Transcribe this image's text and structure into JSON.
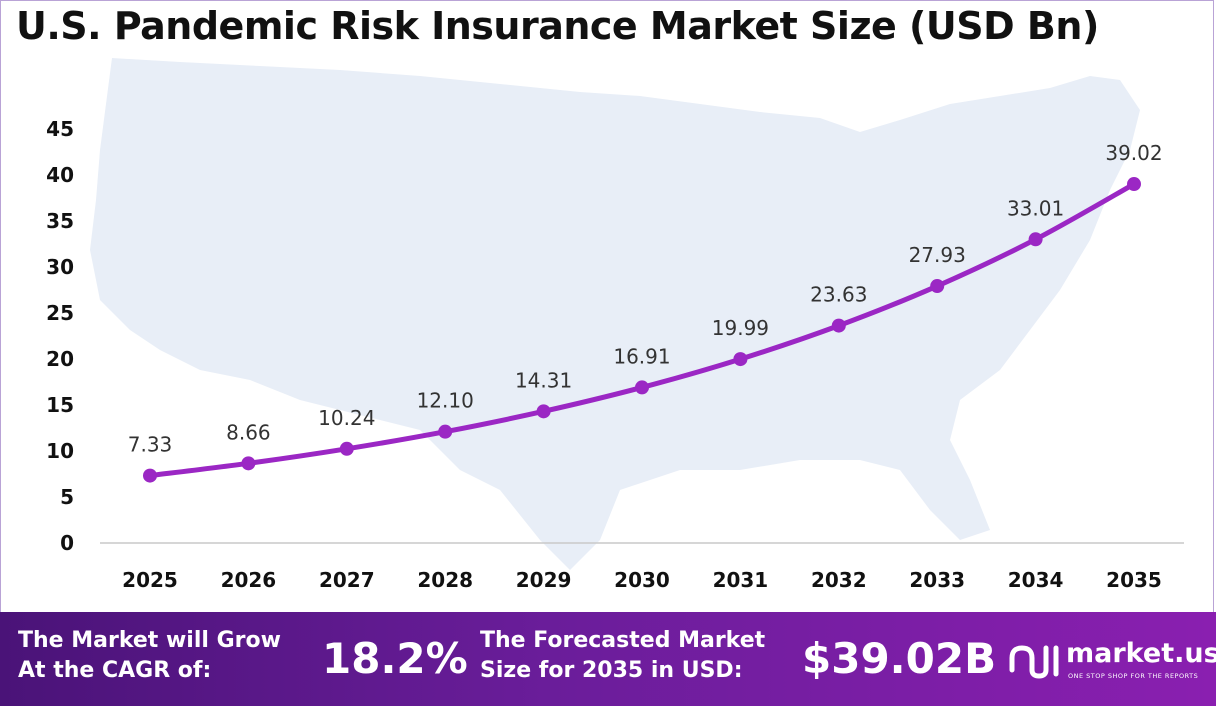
{
  "title": "U.S. Pandemic Risk Insurance Market Size (USD Bn)",
  "chart_data": {
    "type": "line",
    "categories": [
      "2025",
      "2026",
      "2027",
      "2028",
      "2029",
      "2030",
      "2031",
      "2032",
      "2033",
      "2034",
      "2035"
    ],
    "values": [
      7.33,
      8.66,
      10.24,
      12.1,
      14.31,
      16.91,
      19.99,
      23.63,
      27.93,
      33.01,
      39.02
    ],
    "value_labels": [
      "7.33",
      "8.66",
      "10.24",
      "12.10",
      "14.31",
      "16.91",
      "19.99",
      "23.63",
      "27.93",
      "33.01",
      "39.02"
    ],
    "yticks": [
      0,
      5,
      10,
      15,
      20,
      25,
      30,
      35,
      40,
      45
    ],
    "ylim": [
      0,
      45
    ],
    "grid": false,
    "line_color": "#9b27c4",
    "background_map_color": "#e8eef7"
  },
  "footer": {
    "cagr_text": "The Market will Grow\nAt the CAGR of:",
    "cagr_value": "18.2%",
    "forecast_text": "The Forecasted Market\nSize for 2035 in USD:",
    "forecast_value": "$39.02B",
    "logo_name": "market.us",
    "logo_tagline": "ONE STOP SHOP FOR THE REPORTS",
    "logo_icon": "market-us-logo-icon",
    "background_color": "#6a1d9a"
  }
}
